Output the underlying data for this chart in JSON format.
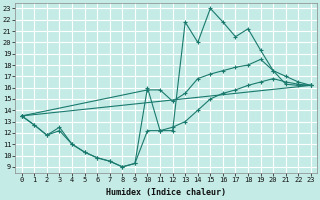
{
  "xlabel": "Humidex (Indice chaleur)",
  "bg_color": "#c5ebe6",
  "grid_color": "#ffffff",
  "line_color": "#1a7a6e",
  "xlim": [
    -0.5,
    23.5
  ],
  "ylim": [
    8.5,
    23.5
  ],
  "xticks": [
    0,
    1,
    2,
    3,
    4,
    5,
    6,
    7,
    8,
    9,
    10,
    11,
    12,
    13,
    14,
    15,
    16,
    17,
    18,
    19,
    20,
    21,
    22,
    23
  ],
  "yticks": [
    9,
    10,
    11,
    12,
    13,
    14,
    15,
    16,
    17,
    18,
    19,
    20,
    21,
    22,
    23
  ],
  "lines": [
    {
      "x": [
        0,
        1,
        2,
        3,
        4,
        5,
        6,
        7,
        8,
        9,
        10,
        11,
        12,
        13,
        14,
        15,
        16,
        17,
        18,
        19,
        20,
        21,
        22,
        23
      ],
      "y": [
        13.5,
        12.7,
        11.8,
        12.5,
        11.0,
        10.3,
        9.8,
        9.5,
        9.0,
        9.3,
        16.0,
        12.2,
        12.2,
        21.8,
        20.0,
        23.0,
        21.8,
        20.5,
        21.2,
        19.3,
        17.5,
        16.3,
        16.2,
        16.2
      ]
    },
    {
      "x": [
        0,
        10,
        11,
        12,
        13,
        14,
        15,
        16,
        17,
        18,
        19,
        20,
        21,
        22,
        23
      ],
      "y": [
        13.5,
        15.8,
        15.8,
        14.8,
        15.5,
        16.8,
        17.2,
        17.5,
        17.8,
        18.0,
        18.5,
        17.5,
        17.0,
        16.5,
        16.2
      ]
    },
    {
      "x": [
        0,
        23
      ],
      "y": [
        13.5,
        16.2
      ]
    },
    {
      "x": [
        0,
        1,
        2,
        3,
        4,
        5,
        6,
        7,
        8,
        9,
        10,
        11,
        12,
        13,
        14,
        15,
        16,
        17,
        18,
        19,
        20,
        21,
        22,
        23
      ],
      "y": [
        13.5,
        12.7,
        11.8,
        12.2,
        11.0,
        10.3,
        9.8,
        9.5,
        9.0,
        9.3,
        12.2,
        12.2,
        12.5,
        13.0,
        14.0,
        15.0,
        15.5,
        15.8,
        16.2,
        16.5,
        16.8,
        16.5,
        16.3,
        16.2
      ]
    }
  ]
}
